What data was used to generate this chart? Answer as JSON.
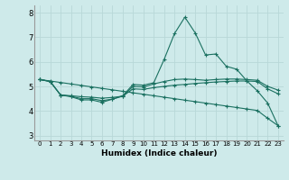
{
  "xlabel": "Humidex (Indice chaleur)",
  "background_color": "#ceeaea",
  "grid_color": "#b8d8d8",
  "line_color": "#1a7060",
  "xlim": [
    -0.5,
    23.5
  ],
  "ylim": [
    2.8,
    8.3
  ],
  "yticks": [
    3,
    4,
    5,
    6,
    7,
    8
  ],
  "xticks": [
    0,
    1,
    2,
    3,
    4,
    5,
    6,
    7,
    8,
    9,
    10,
    11,
    12,
    13,
    14,
    15,
    16,
    17,
    18,
    19,
    20,
    21,
    22,
    23
  ],
  "line1_x": [
    0,
    1,
    2,
    3,
    4,
    5,
    6,
    7,
    8,
    9,
    10,
    11,
    12,
    13,
    14,
    15,
    16,
    17,
    18,
    19,
    20,
    21,
    22,
    23
  ],
  "line1_y": [
    5.28,
    5.22,
    5.16,
    5.1,
    5.04,
    4.98,
    4.92,
    4.86,
    4.8,
    4.74,
    4.68,
    4.62,
    4.56,
    4.5,
    4.44,
    4.38,
    4.32,
    4.26,
    4.2,
    4.14,
    4.08,
    4.02,
    3.7,
    3.4
  ],
  "line2_x": [
    0,
    1,
    2,
    3,
    4,
    5,
    6,
    7,
    8,
    9,
    10,
    11,
    12,
    13,
    14,
    15,
    16,
    17,
    18,
    19,
    20,
    21,
    22,
    23
  ],
  "line2_y": [
    5.28,
    5.2,
    4.65,
    4.62,
    4.58,
    4.56,
    4.52,
    4.55,
    4.6,
    4.9,
    4.88,
    4.95,
    5.0,
    5.05,
    5.08,
    5.12,
    5.15,
    5.18,
    5.2,
    5.22,
    5.22,
    5.2,
    4.9,
    4.7
  ],
  "line3_x": [
    0,
    1,
    2,
    3,
    4,
    5,
    6,
    7,
    8,
    9,
    10,
    11,
    12,
    13,
    14,
    15,
    16,
    17,
    18,
    19,
    20,
    21,
    22,
    23
  ],
  "line3_y": [
    5.28,
    5.2,
    4.65,
    4.6,
    4.5,
    4.5,
    4.42,
    4.48,
    4.6,
    5.0,
    4.98,
    5.1,
    5.2,
    5.28,
    5.3,
    5.28,
    5.25,
    5.28,
    5.3,
    5.3,
    5.28,
    5.25,
    5.0,
    4.85
  ],
  "line4_x": [
    0,
    1,
    2,
    3,
    4,
    5,
    6,
    7,
    8,
    9,
    10,
    11,
    12,
    13,
    14,
    15,
    16,
    17,
    18,
    19,
    20,
    21,
    22,
    23
  ],
  "line4_y": [
    5.28,
    5.2,
    4.65,
    4.58,
    4.45,
    4.45,
    4.35,
    4.48,
    4.62,
    5.08,
    5.05,
    5.15,
    6.1,
    7.15,
    7.82,
    7.18,
    6.28,
    6.32,
    5.82,
    5.7,
    5.22,
    4.82,
    4.32,
    3.4
  ],
  "marker": "+",
  "markersize": 3,
  "linewidth": 0.8
}
